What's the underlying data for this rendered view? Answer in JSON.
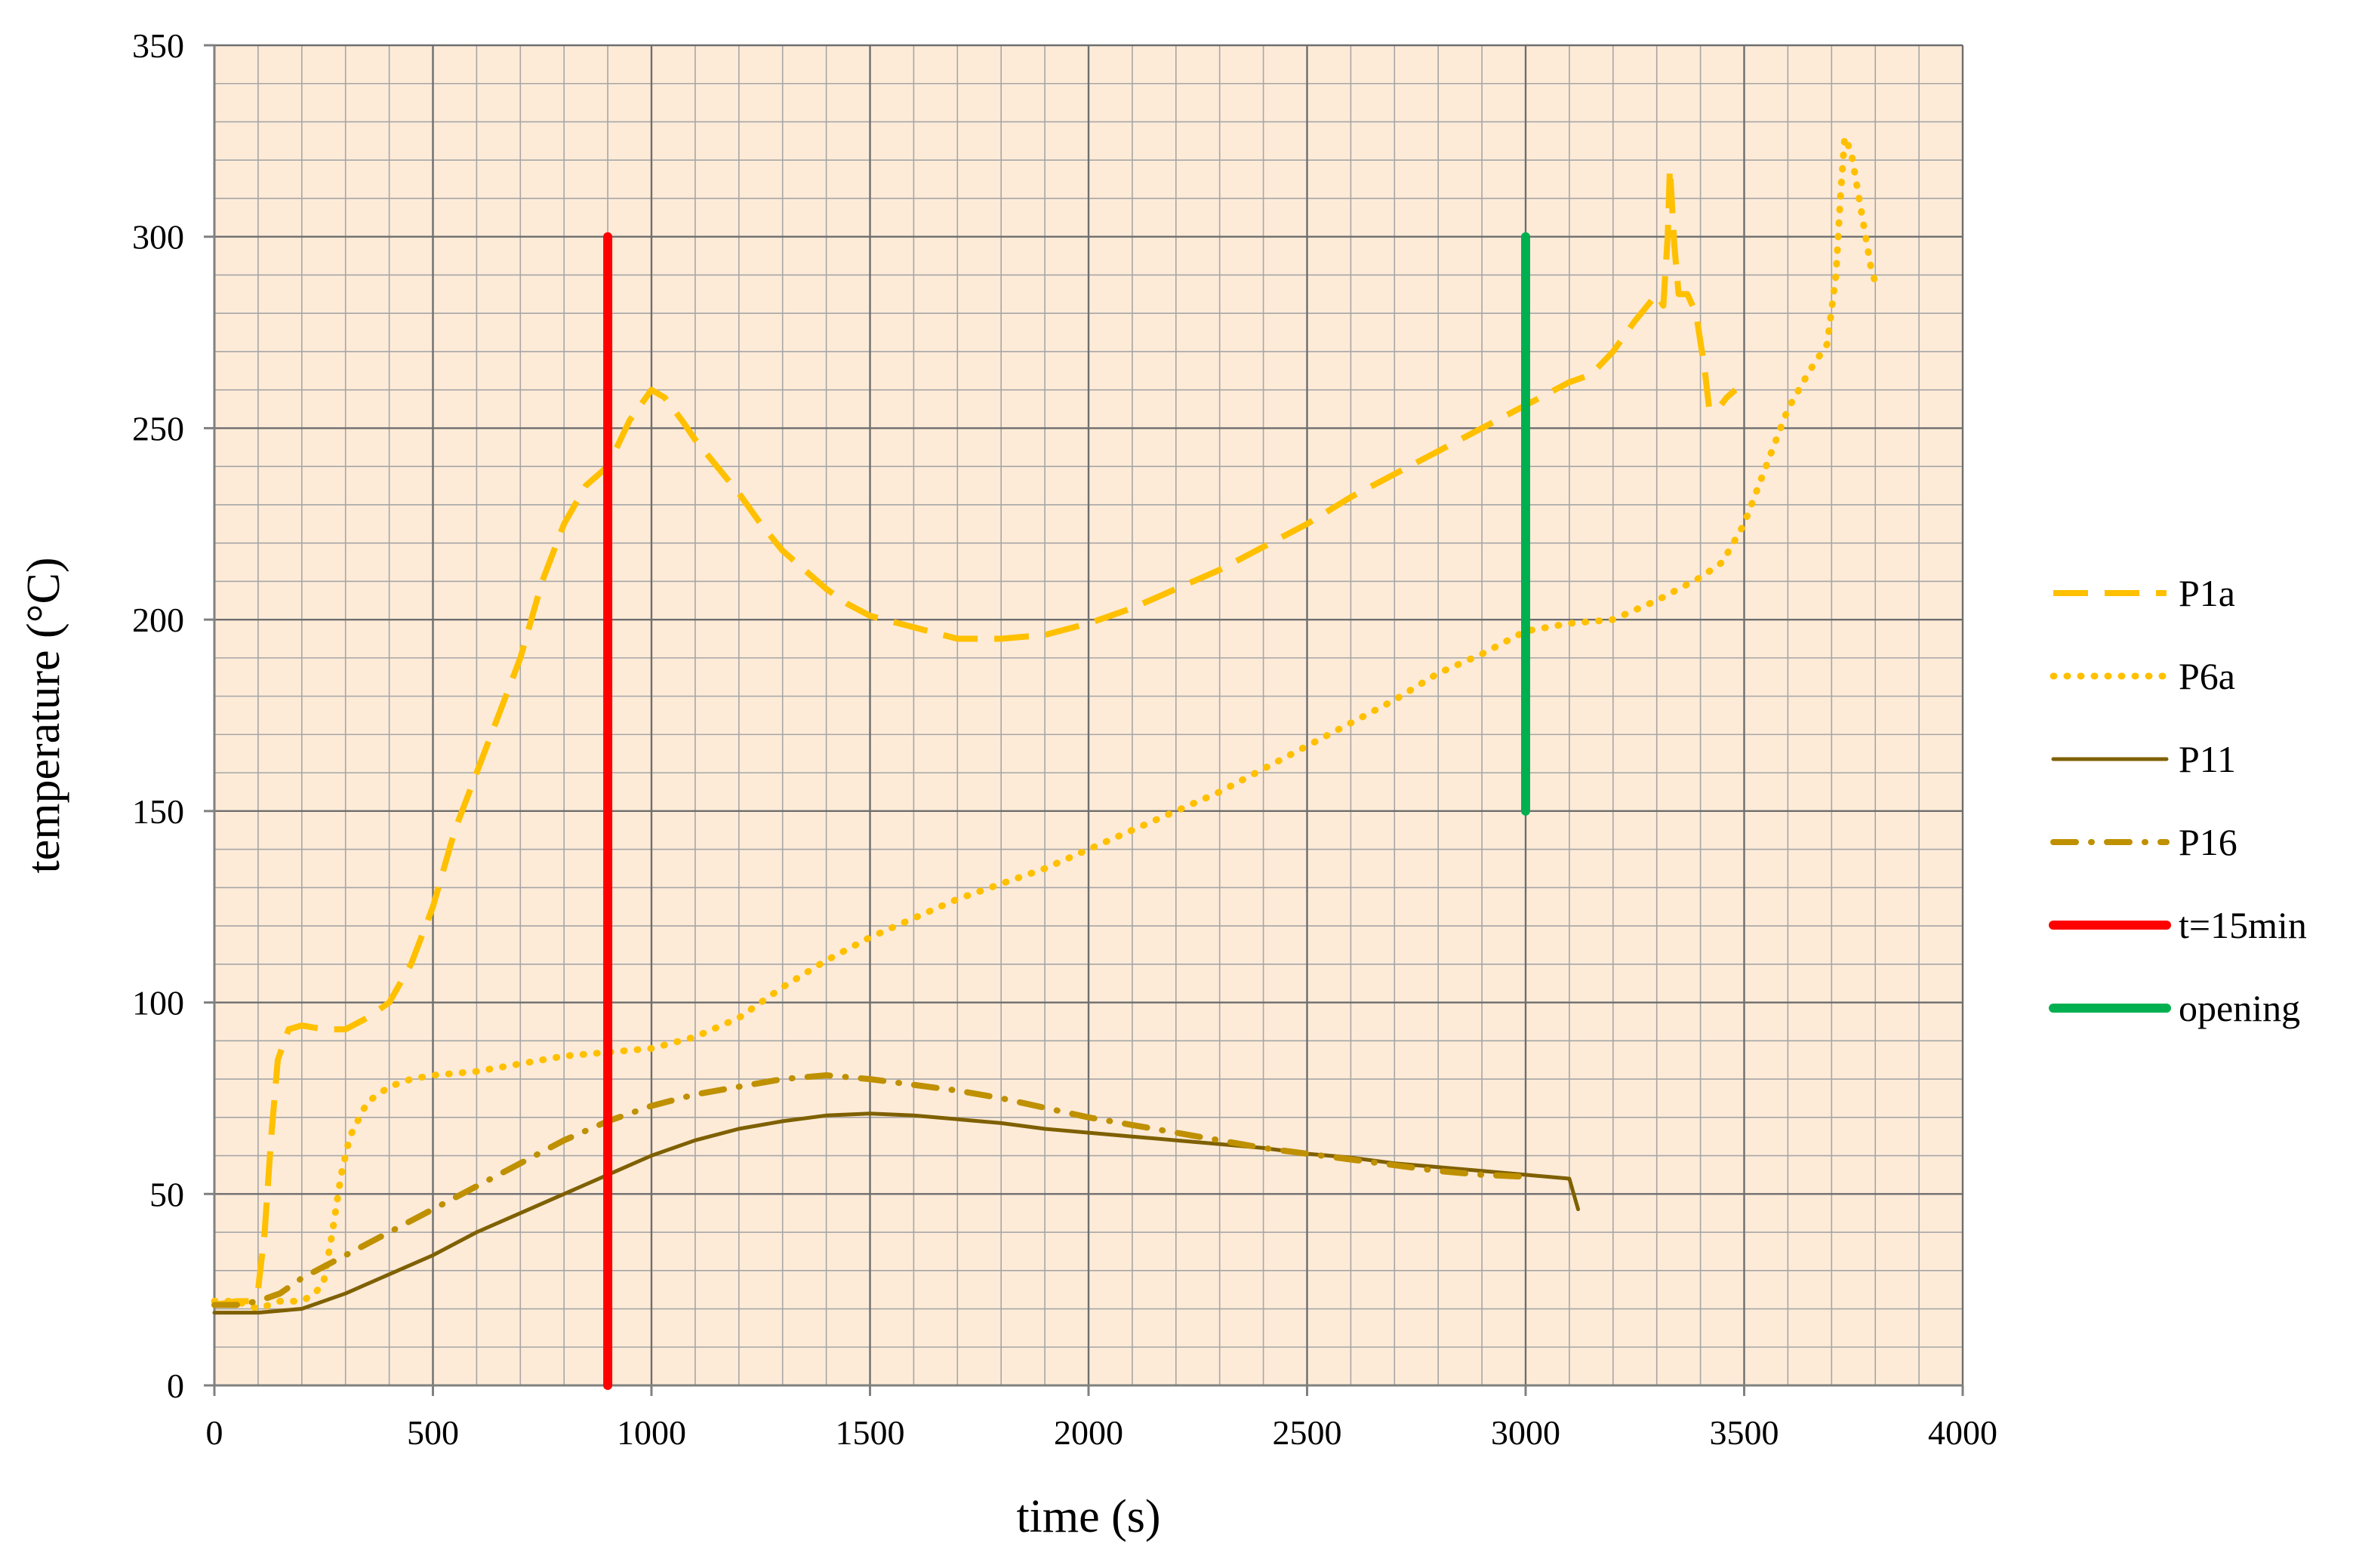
{
  "chart_data": {
    "type": "line",
    "title": "",
    "xlabel": "time (s)",
    "ylabel": "temperature (°C)",
    "xlim": [
      0,
      4000
    ],
    "ylim": [
      0,
      350
    ],
    "x_ticks": [
      0,
      500,
      1000,
      1500,
      2000,
      2500,
      3000,
      3500,
      4000
    ],
    "y_ticks": [
      0,
      50,
      100,
      150,
      200,
      250,
      300,
      350
    ],
    "x_minor_step": 100,
    "y_minor_step": 10,
    "grid": true,
    "plot_background": "#FDEBD8",
    "legend_position": "right",
    "series": [
      {
        "name": "P1a",
        "color": "#FFC000",
        "style": "dashed",
        "points": [
          [
            0,
            21
          ],
          [
            50,
            22
          ],
          [
            80,
            22
          ],
          [
            100,
            25
          ],
          [
            115,
            40
          ],
          [
            130,
            65
          ],
          [
            145,
            85
          ],
          [
            170,
            93
          ],
          [
            200,
            94
          ],
          [
            250,
            93
          ],
          [
            300,
            93
          ],
          [
            350,
            96
          ],
          [
            400,
            100
          ],
          [
            450,
            110
          ],
          [
            500,
            125
          ],
          [
            550,
            145
          ],
          [
            600,
            160
          ],
          [
            650,
            175
          ],
          [
            700,
            190
          ],
          [
            750,
            210
          ],
          [
            800,
            225
          ],
          [
            850,
            235
          ],
          [
            900,
            240
          ],
          [
            950,
            252
          ],
          [
            1000,
            260
          ],
          [
            1030,
            258
          ],
          [
            1070,
            252
          ],
          [
            1100,
            247
          ],
          [
            1150,
            240
          ],
          [
            1200,
            233
          ],
          [
            1250,
            225
          ],
          [
            1300,
            218
          ],
          [
            1350,
            213
          ],
          [
            1400,
            208
          ],
          [
            1450,
            204
          ],
          [
            1500,
            201
          ],
          [
            1600,
            198
          ],
          [
            1700,
            195
          ],
          [
            1800,
            195
          ],
          [
            1900,
            196
          ],
          [
            2000,
            199
          ],
          [
            2100,
            203
          ],
          [
            2200,
            208
          ],
          [
            2300,
            213
          ],
          [
            2400,
            219
          ],
          [
            2500,
            225
          ],
          [
            2600,
            232
          ],
          [
            2700,
            238
          ],
          [
            2800,
            244
          ],
          [
            2900,
            250
          ],
          [
            3000,
            256
          ],
          [
            3050,
            259
          ],
          [
            3100,
            262
          ],
          [
            3150,
            264
          ],
          [
            3200,
            270
          ],
          [
            3250,
            278
          ],
          [
            3300,
            285
          ],
          [
            3315,
            282
          ],
          [
            3325,
            300
          ],
          [
            3330,
            318
          ],
          [
            3340,
            298
          ],
          [
            3350,
            285
          ],
          [
            3370,
            285
          ],
          [
            3390,
            280
          ],
          [
            3410,
            265
          ],
          [
            3420,
            255
          ],
          [
            3440,
            255
          ],
          [
            3460,
            258
          ],
          [
            3480,
            260
          ]
        ]
      },
      {
        "name": "P6a",
        "color": "#FFC000",
        "style": "dotted",
        "points": [
          [
            0,
            22
          ],
          [
            50,
            22
          ],
          [
            100,
            20
          ],
          [
            150,
            22
          ],
          [
            200,
            22
          ],
          [
            230,
            24
          ],
          [
            250,
            27
          ],
          [
            270,
            40
          ],
          [
            290,
            55
          ],
          [
            310,
            65
          ],
          [
            350,
            74
          ],
          [
            400,
            78
          ],
          [
            450,
            80
          ],
          [
            500,
            81
          ],
          [
            600,
            82
          ],
          [
            700,
            84
          ],
          [
            800,
            86
          ],
          [
            900,
            87
          ],
          [
            1000,
            88
          ],
          [
            1100,
            91
          ],
          [
            1200,
            96
          ],
          [
            1300,
            104
          ],
          [
            1400,
            111
          ],
          [
            1500,
            117
          ],
          [
            1600,
            122
          ],
          [
            1700,
            127
          ],
          [
            1800,
            131
          ],
          [
            1900,
            135
          ],
          [
            2000,
            140
          ],
          [
            2100,
            145
          ],
          [
            2200,
            150
          ],
          [
            2300,
            155
          ],
          [
            2400,
            161
          ],
          [
            2500,
            167
          ],
          [
            2600,
            173
          ],
          [
            2700,
            179
          ],
          [
            2800,
            186
          ],
          [
            2900,
            191
          ],
          [
            3000,
            197
          ],
          [
            3100,
            199
          ],
          [
            3200,
            200
          ],
          [
            3300,
            205
          ],
          [
            3400,
            211
          ],
          [
            3450,
            215
          ],
          [
            3500,
            225
          ],
          [
            3550,
            240
          ],
          [
            3600,
            255
          ],
          [
            3650,
            265
          ],
          [
            3690,
            272
          ],
          [
            3710,
            290
          ],
          [
            3720,
            310
          ],
          [
            3730,
            326
          ],
          [
            3745,
            322
          ],
          [
            3760,
            312
          ],
          [
            3775,
            302
          ],
          [
            3790,
            292
          ],
          [
            3800,
            288
          ],
          [
            3810,
            286
          ]
        ]
      },
      {
        "name": "P11",
        "color": "#7F6000",
        "style": "solid",
        "points": [
          [
            0,
            19
          ],
          [
            100,
            19
          ],
          [
            200,
            20
          ],
          [
            300,
            24
          ],
          [
            400,
            29
          ],
          [
            500,
            34
          ],
          [
            600,
            40
          ],
          [
            700,
            45
          ],
          [
            800,
            50
          ],
          [
            900,
            55
          ],
          [
            1000,
            60
          ],
          [
            1100,
            64
          ],
          [
            1200,
            67
          ],
          [
            1300,
            69
          ],
          [
            1400,
            70.5
          ],
          [
            1500,
            71
          ],
          [
            1600,
            70.5
          ],
          [
            1700,
            69.5
          ],
          [
            1800,
            68.5
          ],
          [
            1900,
            67
          ],
          [
            2000,
            66
          ],
          [
            2100,
            65
          ],
          [
            2200,
            64
          ],
          [
            2300,
            63
          ],
          [
            2400,
            62
          ],
          [
            2500,
            60.5
          ],
          [
            2600,
            59.5
          ],
          [
            2700,
            58
          ],
          [
            2800,
            57
          ],
          [
            2900,
            56
          ],
          [
            3000,
            55
          ],
          [
            3100,
            54
          ],
          [
            3110,
            50
          ],
          [
            3120,
            46
          ]
        ]
      },
      {
        "name": "P16",
        "color": "#BF9000",
        "style": "dashdot",
        "points": [
          [
            0,
            21
          ],
          [
            50,
            21
          ],
          [
            100,
            22
          ],
          [
            150,
            24
          ],
          [
            200,
            28
          ],
          [
            250,
            31
          ],
          [
            300,
            34
          ],
          [
            400,
            40
          ],
          [
            500,
            46
          ],
          [
            600,
            52
          ],
          [
            700,
            58
          ],
          [
            800,
            64
          ],
          [
            900,
            69
          ],
          [
            1000,
            73
          ],
          [
            1100,
            76
          ],
          [
            1200,
            78
          ],
          [
            1300,
            80
          ],
          [
            1400,
            81
          ],
          [
            1500,
            80
          ],
          [
            1600,
            78.5
          ],
          [
            1700,
            77
          ],
          [
            1800,
            75
          ],
          [
            1900,
            72.5
          ],
          [
            2000,
            70
          ],
          [
            2100,
            68
          ],
          [
            2200,
            66
          ],
          [
            2300,
            64
          ],
          [
            2400,
            62
          ],
          [
            2500,
            60.5
          ],
          [
            2600,
            59
          ],
          [
            2700,
            57.5
          ],
          [
            2800,
            56
          ],
          [
            2900,
            55
          ],
          [
            3000,
            54.5
          ]
        ]
      },
      {
        "name": "t=15min",
        "color": "#FF0000",
        "style": "solid",
        "points": [
          [
            900,
            0
          ],
          [
            900,
            300
          ]
        ]
      },
      {
        "name": "opening",
        "color": "#00B050",
        "style": "solid",
        "points": [
          [
            3000,
            150
          ],
          [
            3000,
            300
          ]
        ]
      }
    ]
  }
}
